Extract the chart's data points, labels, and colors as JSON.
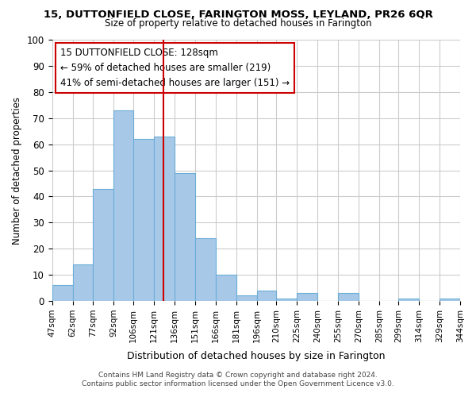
{
  "title": "15, DUTTONFIELD CLOSE, FARINGTON MOSS, LEYLAND, PR26 6QR",
  "subtitle": "Size of property relative to detached houses in Farington",
  "xlabel": "Distribution of detached houses by size in Farington",
  "ylabel": "Number of detached properties",
  "bar_color": "#a8c8e8",
  "bar_edge_color": "#6baed6",
  "vline_x": 128,
  "vline_color": "#cc0000",
  "annotation_lines": [
    "15 DUTTONFIELD CLOSE: 128sqm",
    "← 59% of detached houses are smaller (219)",
    "41% of semi-detached houses are larger (151) →"
  ],
  "annotation_box_edge_color": "#cc0000",
  "bins": [
    47,
    62,
    77,
    92,
    106,
    121,
    136,
    151,
    166,
    181,
    196,
    210,
    225,
    240,
    255,
    270,
    285,
    299,
    314,
    329,
    344
  ],
  "bin_labels": [
    "47sqm",
    "62sqm",
    "77sqm",
    "92sqm",
    "106sqm",
    "121sqm",
    "136sqm",
    "151sqm",
    "166sqm",
    "181sqm",
    "196sqm",
    "210sqm",
    "225sqm",
    "240sqm",
    "255sqm",
    "270sqm",
    "285sqm",
    "299sqm",
    "314sqm",
    "329sqm",
    "344sqm"
  ],
  "counts": [
    6,
    14,
    43,
    73,
    62,
    63,
    49,
    24,
    10,
    2,
    4,
    1,
    3,
    0,
    3,
    0,
    0,
    1,
    0,
    1
  ],
  "ylim": [
    0,
    100
  ],
  "yticks": [
    0,
    10,
    20,
    30,
    40,
    50,
    60,
    70,
    80,
    90,
    100
  ],
  "footer1": "Contains HM Land Registry data © Crown copyright and database right 2024.",
  "footer2": "Contains public sector information licensed under the Open Government Licence v3.0.",
  "background_color": "#ffffff",
  "grid_color": "#cccccc"
}
